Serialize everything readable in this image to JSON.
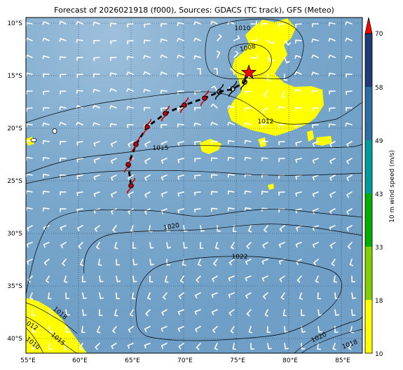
{
  "title": "Forecast of 2026021918 (f000), Sources: GDACS (TC track), GFS (Meteo)",
  "map": {
    "lon_range": [
      55,
      87
    ],
    "lat_range": [
      -41.5,
      -9.5
    ],
    "x_ticks": [
      "55°E",
      "60°E",
      "65°E",
      "70°E",
      "75°E",
      "80°E",
      "85°E"
    ],
    "y_ticks": [
      "10°S",
      "15°S",
      "20°S",
      "25°S",
      "30°S",
      "35°S",
      "40°S"
    ],
    "ocean_color": "#79a6cb",
    "wind_area_color": "#ffff00"
  },
  "isobar_labels": [
    "1010",
    "1008",
    "1012",
    "1015",
    "1020",
    "1022",
    "1020",
    "1018",
    "1018",
    "1015",
    "1012",
    "1010"
  ],
  "track": {
    "current_position_icon": "red-star-icon",
    "forecast_symbol_icon": "tropical-cyclone-icon"
  },
  "colorbar": {
    "label": "10 m wind speed (m/s)",
    "ticks": [
      "10",
      "18",
      "33",
      "43",
      "49",
      "58",
      "70"
    ],
    "colors": [
      "#ffff00",
      "#7fd000",
      "#00b000",
      "#009a9a",
      "#2a6ea2",
      "#1f3a78"
    ],
    "extend_color": "#ff0000"
  }
}
